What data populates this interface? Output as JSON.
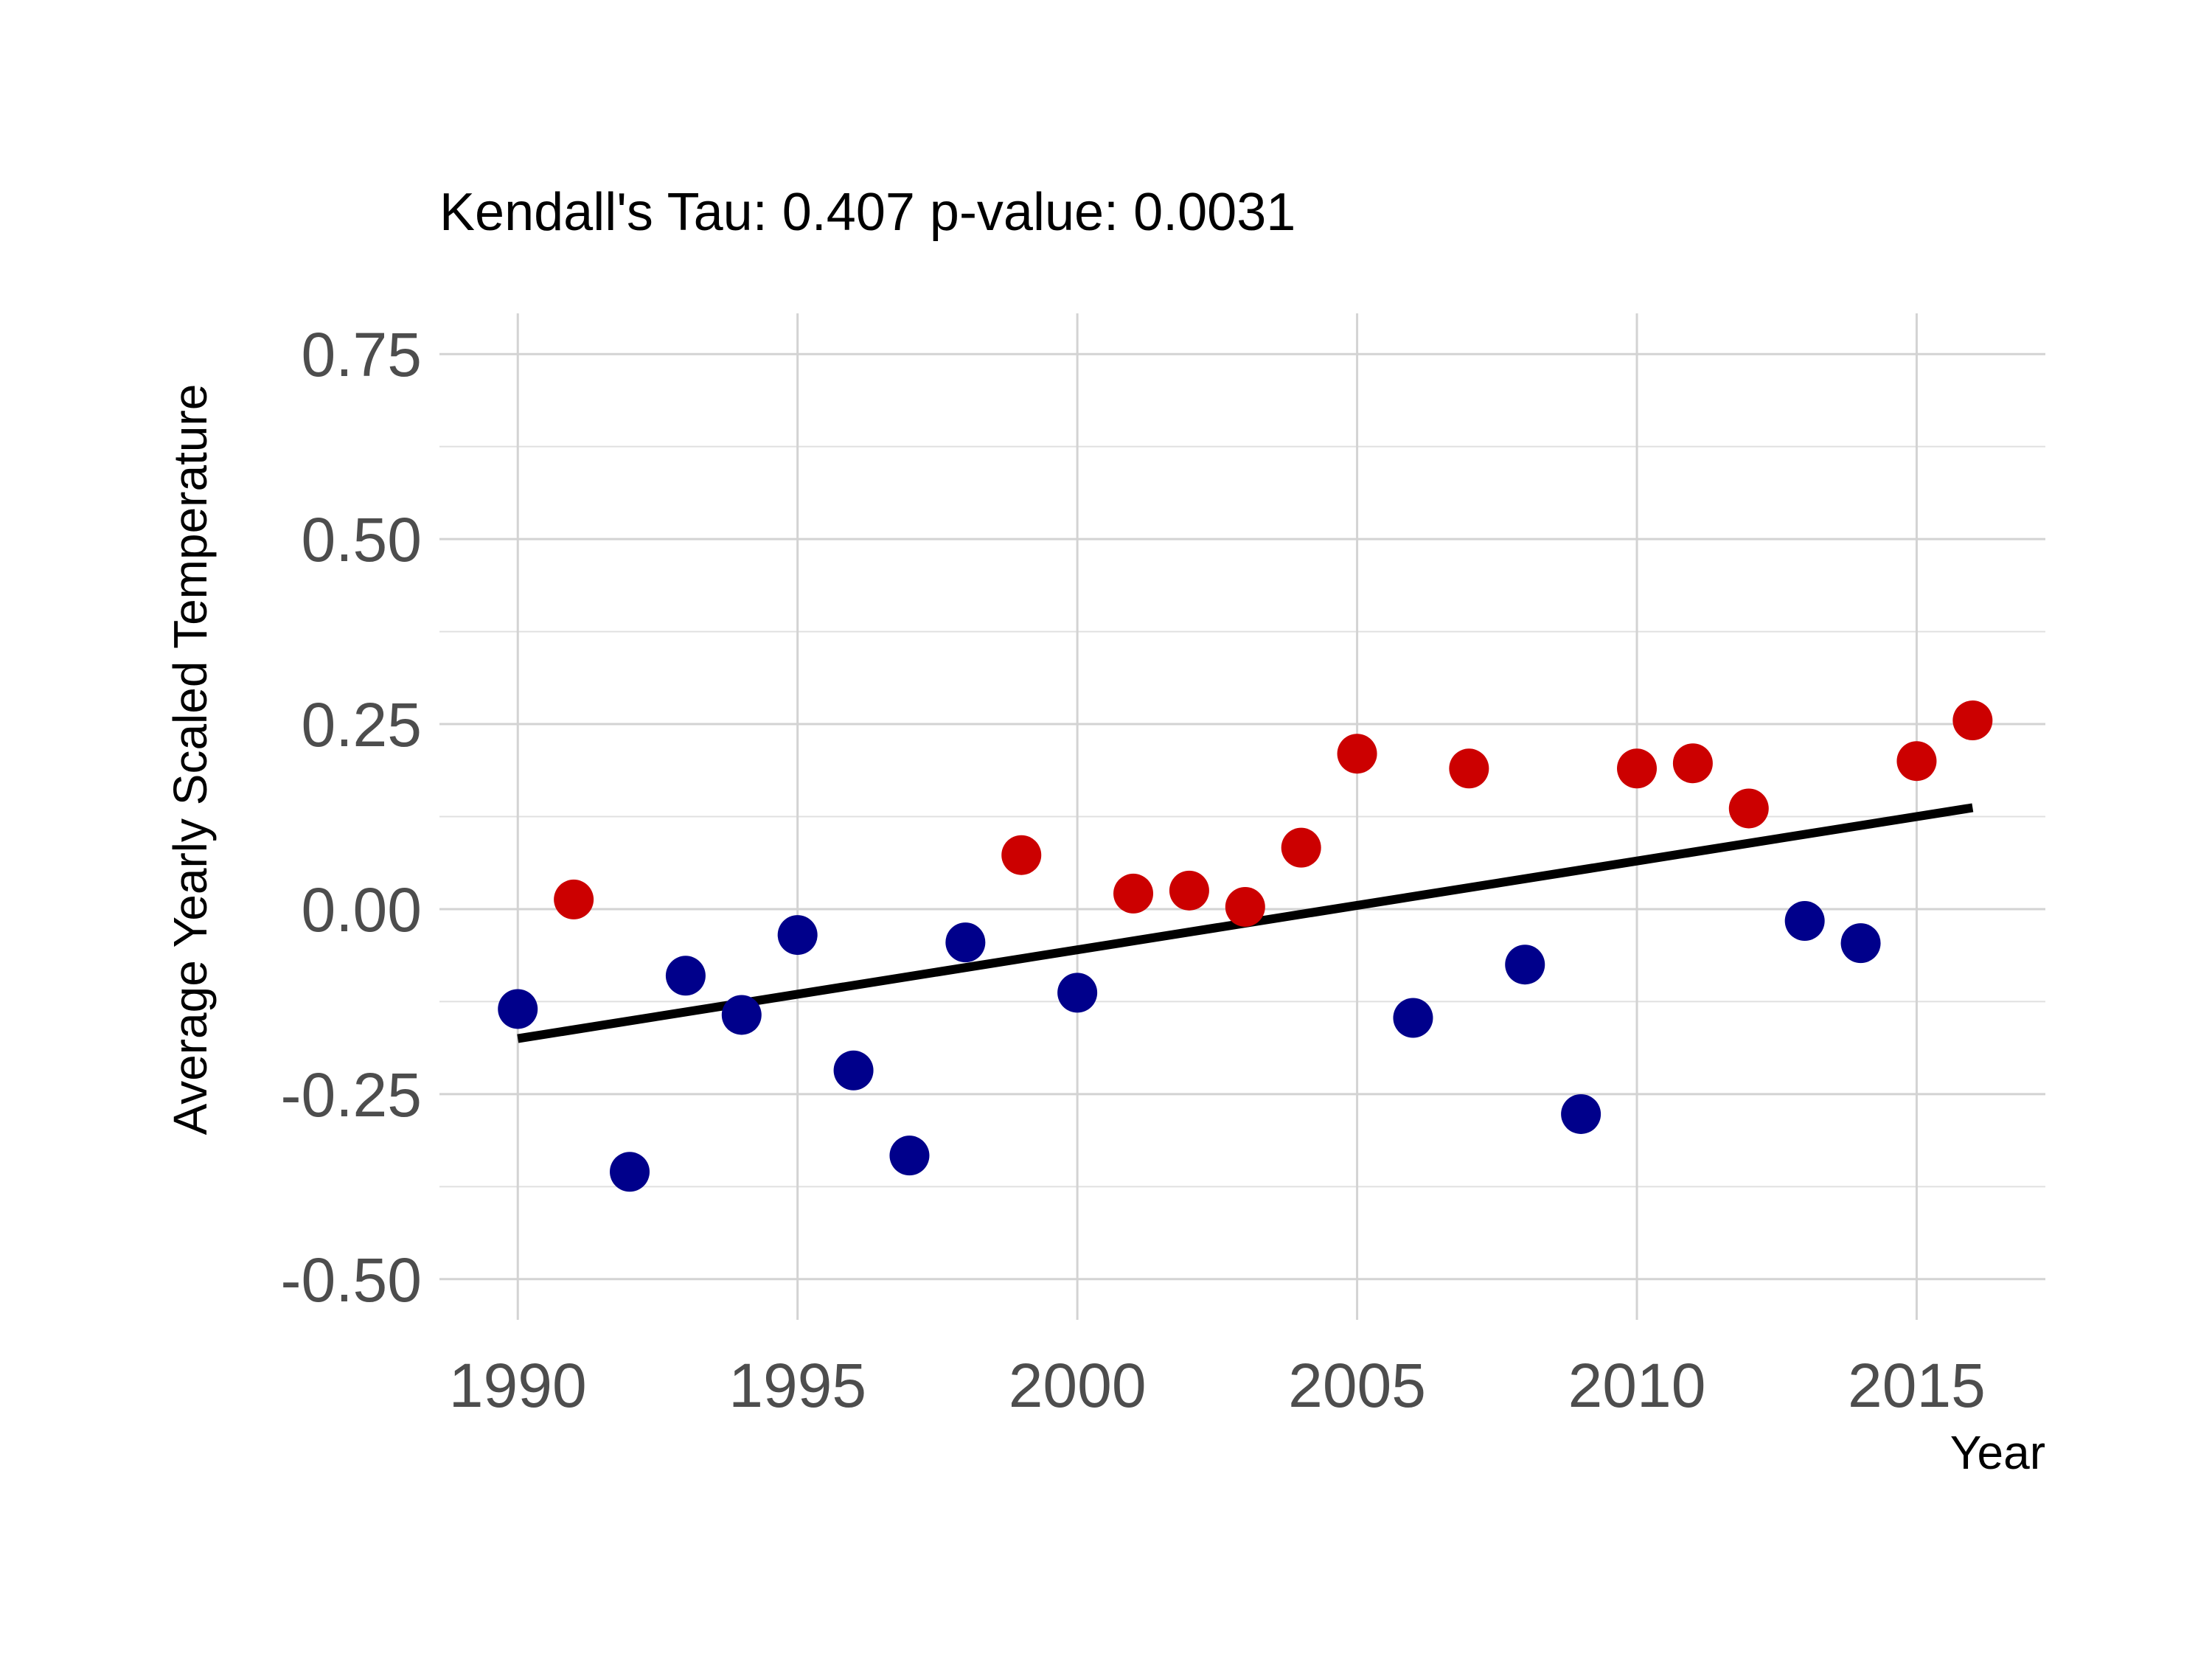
{
  "chart_data": {
    "type": "scatter",
    "title": "Kendall's Tau: 0.407 p-value: 0.0031",
    "xlabel": "Year",
    "ylabel": "Average Yearly Scaled Temperature",
    "xlim": [
      1988.6,
      2017.3
    ],
    "ylim": [
      -0.555,
      0.805
    ],
    "x_ticks": [
      1990,
      1995,
      2000,
      2005,
      2010,
      2015
    ],
    "x_tick_labels": [
      "1990",
      "1995",
      "2000",
      "2005",
      "2010",
      "2015"
    ],
    "y_ticks": [
      -0.5,
      -0.25,
      0.0,
      0.25,
      0.5,
      0.75
    ],
    "y_tick_labels": [
      "-0.50",
      "-0.25",
      "0.00",
      "0.25",
      "0.50",
      "0.75"
    ],
    "grid": true,
    "legend": "none",
    "colors": {
      "above": "#cc0000",
      "below": "#00008b",
      "trend": "#000000",
      "grid": "#d3d3d3"
    },
    "points": [
      {
        "x": 1990,
        "y": -0.135,
        "group": "below"
      },
      {
        "x": 1991,
        "y": 0.013,
        "group": "above"
      },
      {
        "x": 1992,
        "y": -0.355,
        "group": "below"
      },
      {
        "x": 1993,
        "y": -0.09,
        "group": "below"
      },
      {
        "x": 1994,
        "y": -0.143,
        "group": "below"
      },
      {
        "x": 1995,
        "y": -0.035,
        "group": "below"
      },
      {
        "x": 1996,
        "y": -0.218,
        "group": "below"
      },
      {
        "x": 1997,
        "y": -0.333,
        "group": "below"
      },
      {
        "x": 1998,
        "y": -0.045,
        "group": "below"
      },
      {
        "x": 1999,
        "y": 0.073,
        "group": "above"
      },
      {
        "x": 2000,
        "y": -0.113,
        "group": "below"
      },
      {
        "x": 2001,
        "y": 0.021,
        "group": "above"
      },
      {
        "x": 2002,
        "y": 0.025,
        "group": "above"
      },
      {
        "x": 2003,
        "y": 0.003,
        "group": "above"
      },
      {
        "x": 2004,
        "y": 0.083,
        "group": "above"
      },
      {
        "x": 2005,
        "y": 0.21,
        "group": "above"
      },
      {
        "x": 2006,
        "y": -0.147,
        "group": "below"
      },
      {
        "x": 2007,
        "y": 0.19,
        "group": "above"
      },
      {
        "x": 2008,
        "y": -0.075,
        "group": "below"
      },
      {
        "x": 2009,
        "y": -0.277,
        "group": "below"
      },
      {
        "x": 2010,
        "y": 0.19,
        "group": "above"
      },
      {
        "x": 2011,
        "y": 0.197,
        "group": "above"
      },
      {
        "x": 2012,
        "y": 0.136,
        "group": "above"
      },
      {
        "x": 2013,
        "y": -0.016,
        "group": "below"
      },
      {
        "x": 2014,
        "y": -0.046,
        "group": "below"
      },
      {
        "x": 2015,
        "y": 0.2,
        "group": "above"
      },
      {
        "x": 2016,
        "y": 0.255,
        "group": "above"
      }
    ],
    "trend": {
      "x": [
        1990,
        2016
      ],
      "y": [
        -0.175,
        0.137
      ]
    }
  }
}
